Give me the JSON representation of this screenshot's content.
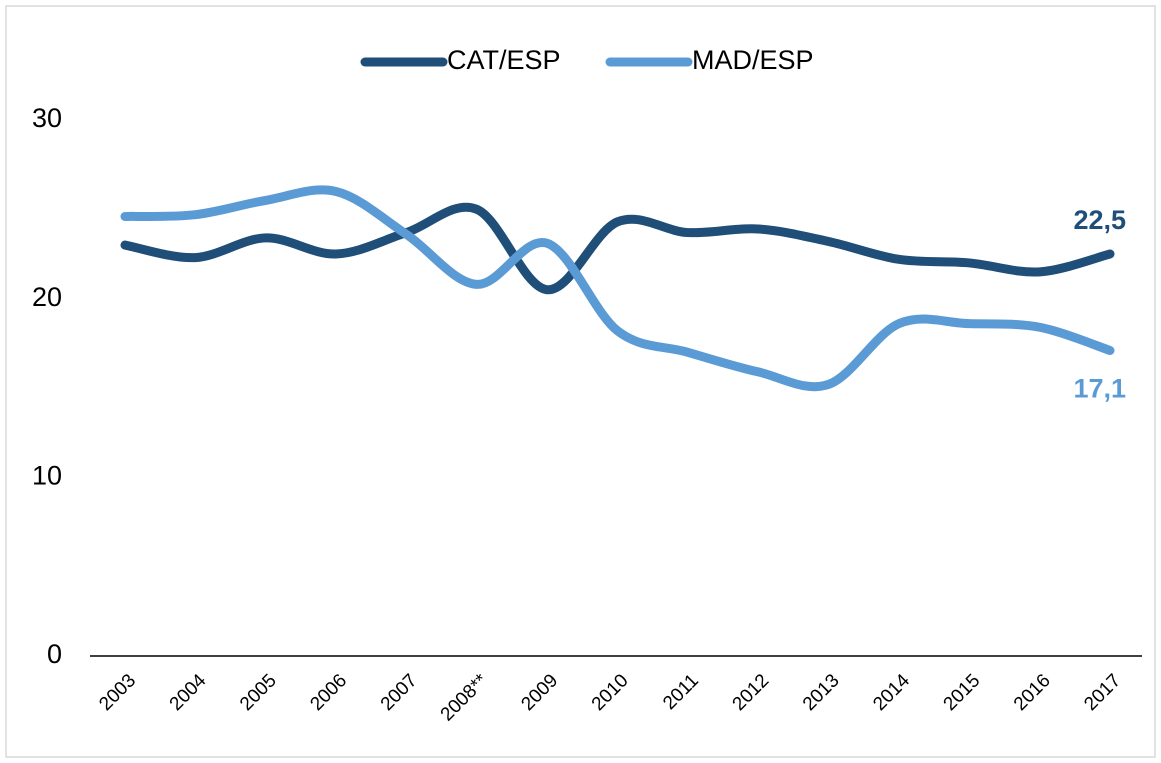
{
  "chart_data": {
    "type": "line",
    "categories": [
      "2003",
      "2004",
      "2005",
      "2006",
      "2007",
      "2008**",
      "2009",
      "2010",
      "2011",
      "2012",
      "2013",
      "2014",
      "2015",
      "2016",
      "2017"
    ],
    "series": [
      {
        "name": "CAT/ESP",
        "color": "#1f4e79",
        "values": [
          23.0,
          22.3,
          23.4,
          22.5,
          23.7,
          25.0,
          20.5,
          24.3,
          23.7,
          23.9,
          23.2,
          22.2,
          22.0,
          21.5,
          22.5
        ],
        "value_labels": [
          null,
          null,
          null,
          null,
          null,
          null,
          null,
          null,
          null,
          null,
          null,
          null,
          null,
          null,
          "22,5"
        ]
      },
      {
        "name": "MAD/ESP",
        "color": "#5b9bd5",
        "values": [
          24.6,
          24.7,
          25.5,
          26.0,
          23.6,
          20.8,
          23.1,
          18.2,
          17.0,
          15.9,
          15.2,
          18.6,
          18.6,
          18.4,
          17.1
        ],
        "value_labels": [
          null,
          null,
          null,
          null,
          null,
          null,
          null,
          null,
          null,
          null,
          null,
          null,
          null,
          null,
          "17,1"
        ]
      }
    ],
    "ylim": [
      0,
      30
    ],
    "yticks": [
      0,
      10,
      20,
      30
    ],
    "grid": false,
    "legend": "top"
  }
}
